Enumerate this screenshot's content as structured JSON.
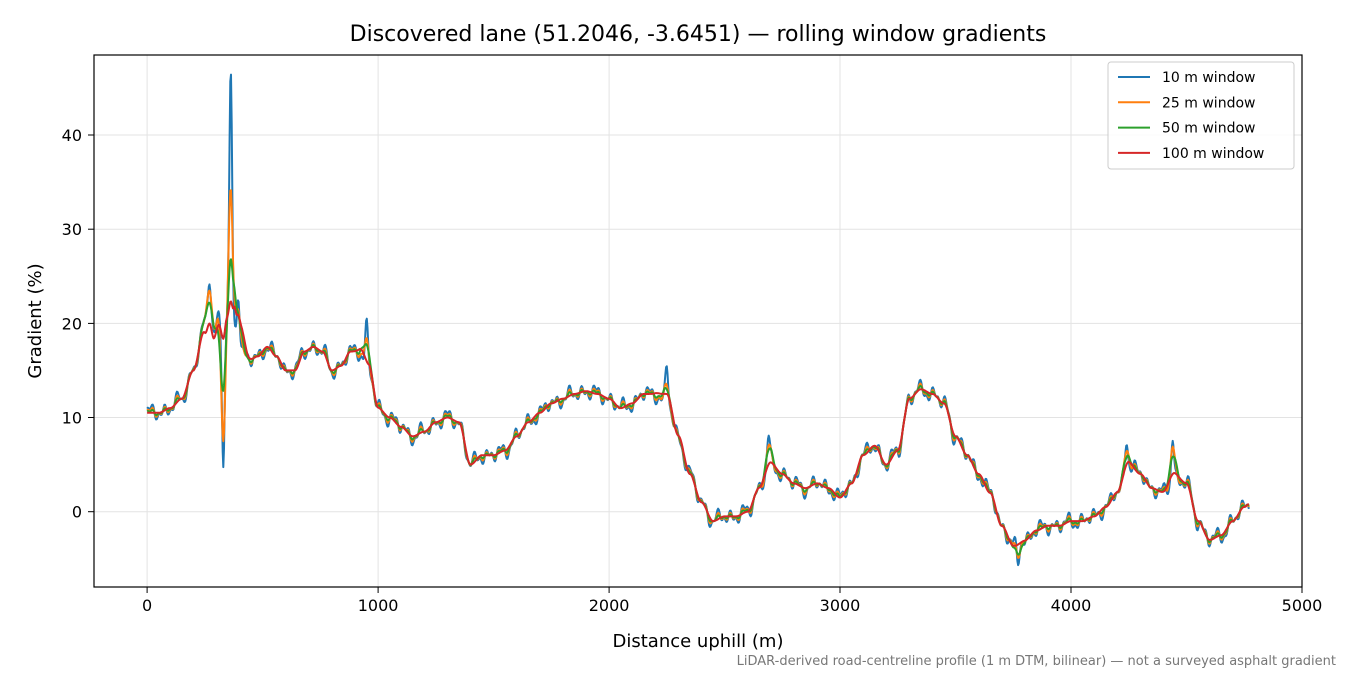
{
  "chart_data": {
    "type": "line",
    "title": "Discovered lane (51.2046, -3.6451) — rolling window gradients",
    "xlabel": "Distance uphill (m)",
    "ylabel": "Gradient (%)",
    "xlim": [
      -230,
      5000
    ],
    "ylim": [
      -8,
      48.5
    ],
    "xticks": [
      0,
      1000,
      2000,
      3000,
      4000,
      5000
    ],
    "yticks": [
      0,
      10,
      20,
      30,
      40
    ],
    "grid": true,
    "legend_position": "top-right",
    "footnote": "LiDAR-derived road-centreline profile (1 m DTM, bilinear) — not a surveyed asphalt gradient",
    "base_profile": {
      "x": [
        0,
        50,
        100,
        150,
        200,
        250,
        270,
        290,
        310,
        330,
        345,
        360,
        375,
        390,
        410,
        440,
        480,
        520,
        560,
        600,
        640,
        680,
        720,
        760,
        800,
        840,
        880,
        920,
        960,
        1000,
        1050,
        1100,
        1150,
        1200,
        1250,
        1300,
        1350,
        1400,
        1450,
        1500,
        1550,
        1600,
        1650,
        1700,
        1750,
        1800,
        1850,
        1900,
        1950,
        2000,
        2050,
        2100,
        2150,
        2200,
        2250,
        2300,
        2350,
        2400,
        2450,
        2500,
        2550,
        2600,
        2650,
        2700,
        2750,
        2800,
        2850,
        2900,
        2950,
        3000,
        3050,
        3100,
        3150,
        3200,
        3250,
        3300,
        3350,
        3400,
        3450,
        3500,
        3550,
        3600,
        3650,
        3700,
        3750,
        3800,
        3850,
        3900,
        3950,
        4000,
        4050,
        4100,
        4150,
        4200,
        4250,
        4300,
        4350,
        4400,
        4450,
        4500,
        4550,
        4600,
        4650,
        4700,
        4750,
        4770
      ],
      "y": [
        10.5,
        10.5,
        11.0,
        12.0,
        15.0,
        20.0,
        21.5,
        19.5,
        20.5,
        19.0,
        21.0,
        22.0,
        20.0,
        18.0,
        17.0,
        16.0,
        16.5,
        17.5,
        16.5,
        15.0,
        15.0,
        17.0,
        17.5,
        17.0,
        15.0,
        15.5,
        17.0,
        17.0,
        15.0,
        11.0,
        10.0,
        9.0,
        8.0,
        8.5,
        9.5,
        10.0,
        9.5,
        5.0,
        6.0,
        6.0,
        6.5,
        8.0,
        9.5,
        10.5,
        11.5,
        12.0,
        12.5,
        12.8,
        12.5,
        12.0,
        11.0,
        11.5,
        12.5,
        12.5,
        11.5,
        8.0,
        4.0,
        1.0,
        -1.0,
        -0.5,
        -0.5,
        0.0,
        2.5,
        5.0,
        4.0,
        3.0,
        2.5,
        3.0,
        2.5,
        1.5,
        3.0,
        6.0,
        7.0,
        5.0,
        6.5,
        12.0,
        13.0,
        12.5,
        11.5,
        8.0,
        6.0,
        4.0,
        2.0,
        -1.5,
        -3.5,
        -3.0,
        -2.0,
        -1.5,
        -1.5,
        -1.0,
        -1.0,
        -0.5,
        0.5,
        2.0,
        5.0,
        4.0,
        2.5,
        2.0,
        3.5,
        3.0,
        -1.0,
        -3.0,
        -2.5,
        -1.0,
        0.5,
        0.8
      ]
    },
    "series": [
      {
        "name": "10 m window",
        "color": "#1f77b4",
        "noise": 1.0
      },
      {
        "name": "25 m window",
        "color": "#ff7f0e",
        "noise": 0.6
      },
      {
        "name": "50 m window",
        "color": "#2ca02c",
        "noise": 0.35
      },
      {
        "name": "100 m window",
        "color": "#d62728",
        "noise": 0.0
      }
    ],
    "spikes": [
      {
        "x": 330,
        "values": [
          4.8,
          7.5,
          12.5,
          18.5
        ]
      },
      {
        "x": 362,
        "values": [
          46.0,
          33.8,
          26.8,
          21.5
        ]
      },
      {
        "x": 270,
        "values": [
          25.0,
          24.0,
          22.5,
          20.0
        ]
      },
      {
        "x": 395,
        "values": [
          23.5,
          22.0,
          21.0,
          21.0
        ]
      },
      {
        "x": 2250,
        "values": [
          15.5,
          13.5,
          13.0,
          12.5
        ]
      },
      {
        "x": 950,
        "values": [
          19.8,
          18.0,
          17.5,
          16.0
        ]
      },
      {
        "x": 4240,
        "values": [
          7.8,
          6.8,
          6.0,
          5.0
        ]
      },
      {
        "x": 4440,
        "values": [
          8.0,
          7.2,
          6.0,
          4.0
        ]
      },
      {
        "x": 2690,
        "values": [
          8.0,
          7.0,
          6.5,
          5.0
        ]
      },
      {
        "x": 3770,
        "values": [
          -5.5,
          -4.8,
          -4.5,
          -3.5
        ]
      }
    ]
  }
}
